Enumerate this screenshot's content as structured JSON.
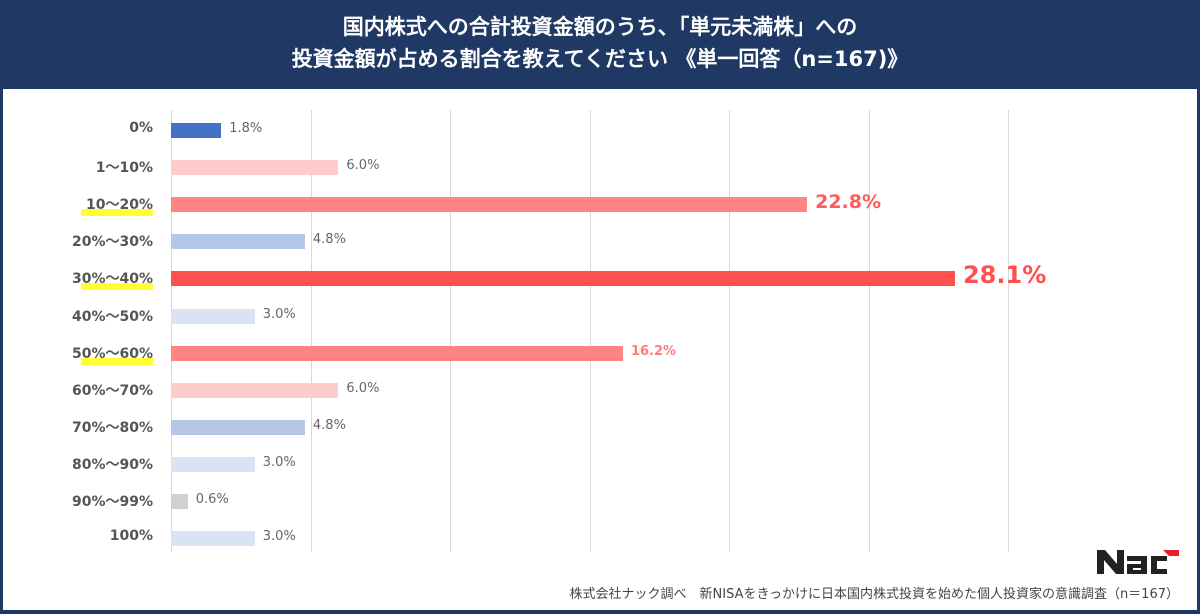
{
  "header": {
    "title_line1": "国内株式への合計投資金額のうち、「単元未満株」への",
    "title_line2": "投資金額が占める割合を教えてください 《単一回答（n=167)》"
  },
  "footer": {
    "source": "株式会社ナック調べ　新NISAをきっかけに日本国内株式投資を始めた個人投資家の意識調査（n＝167）",
    "logo_text": "NAC"
  },
  "colors": {
    "header_bg": "#1f3864",
    "highlight": "#ffff33"
  },
  "chart_data": {
    "type": "bar",
    "orientation": "horizontal",
    "title": "国内株式への合計投資金額のうち、「単元未満株」への投資金額が占める割合を教えてください 《単一回答（n=167)》",
    "xlabel": "",
    "ylabel": "",
    "xlim": [
      0,
      30
    ],
    "grid": true,
    "gridline_step": 5,
    "legend": "none",
    "categories": [
      "0%",
      "1〜10%",
      "10〜20%",
      "20%〜30%",
      "30%〜40%",
      "40%〜50%",
      "50%〜60%",
      "60%〜70%",
      "70%〜80%",
      "80%〜90%",
      "90%〜99%",
      "100%"
    ],
    "values": [
      1.8,
      6.0,
      22.8,
      4.8,
      28.1,
      3.0,
      16.2,
      6.0,
      4.8,
      3.0,
      0.6,
      3.0
    ],
    "value_labels": [
      "1.8%",
      "6.0%",
      "22.8%",
      "4.8%",
      "28.1%",
      "3.0%",
      "16.2%",
      "6.0%",
      "4.8%",
      "3.0%",
      "0.6%",
      "3.0%"
    ],
    "bar_colors": [
      "#4472c4",
      "#ffcccc",
      "#ff8585",
      "#b4c7e7",
      "#ff5050",
      "#dae3f3",
      "#ff8585",
      "#ffcccc",
      "#b4c7e7",
      "#dae3f3",
      "#d0d0d0",
      "#dae3f3"
    ],
    "highlighted_categories": [
      "10〜20%",
      "30%〜40%",
      "50%〜60%"
    ],
    "source": "株式会社ナック調べ　新NISAをきっかけに日本国内株式投資を始めた個人投資家の意識調査（n＝167）"
  }
}
